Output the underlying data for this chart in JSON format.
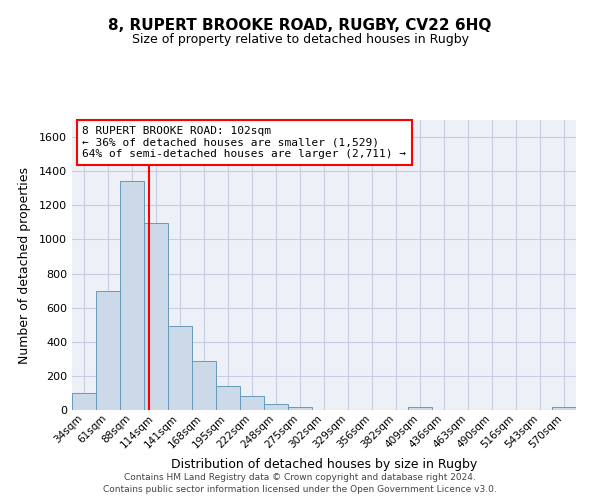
{
  "title": "8, RUPERT BROOKE ROAD, RUGBY, CV22 6HQ",
  "subtitle": "Size of property relative to detached houses in Rugby",
  "xlabel": "Distribution of detached houses by size in Rugby",
  "ylabel": "Number of detached properties",
  "bar_labels": [
    "34sqm",
    "61sqm",
    "88sqm",
    "114sqm",
    "141sqm",
    "168sqm",
    "195sqm",
    "222sqm",
    "248sqm",
    "275sqm",
    "302sqm",
    "329sqm",
    "356sqm",
    "382sqm",
    "409sqm",
    "436sqm",
    "463sqm",
    "490sqm",
    "516sqm",
    "543sqm",
    "570sqm"
  ],
  "bar_values": [
    100,
    695,
    1340,
    1095,
    490,
    285,
    140,
    80,
    35,
    20,
    0,
    0,
    0,
    0,
    20,
    0,
    0,
    0,
    0,
    0,
    15
  ],
  "bar_color": "#ccd9e8",
  "bar_edge_color": "#6699bb",
  "bar_width": 1.0,
  "ylim": [
    0,
    1700
  ],
  "yticks": [
    0,
    200,
    400,
    600,
    800,
    1000,
    1200,
    1400,
    1600
  ],
  "red_line_x": 2.72,
  "annotation_line1": "8 RUPERT BROOKE ROAD: 102sqm",
  "annotation_line2": "← 36% of detached houses are smaller (1,529)",
  "annotation_line3": "64% of semi-detached houses are larger (2,711) →",
  "bg_color": "#eef0f8",
  "grid_color": "#c8cce0",
  "footer1": "Contains HM Land Registry data © Crown copyright and database right 2024.",
  "footer2": "Contains public sector information licensed under the Open Government Licence v3.0."
}
